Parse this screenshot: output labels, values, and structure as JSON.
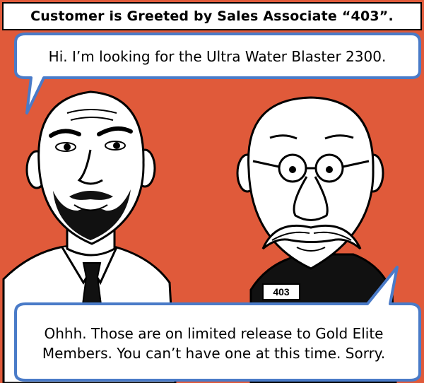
{
  "caption": "Customer is Greeted by Sales Associate “403”.",
  "customer_bubble": "Hi. I’m looking for the Ultra Water Blaster 2300.",
  "associate_bubble": "Ohhh. Those are on limited release to Gold Elite Members. You can’t have one at this time. Sorry.",
  "badge": "403",
  "colors": {
    "background": "#e05a3a",
    "bubble_border": "#4a7bc8",
    "bubble_fill": "#ffffff"
  }
}
